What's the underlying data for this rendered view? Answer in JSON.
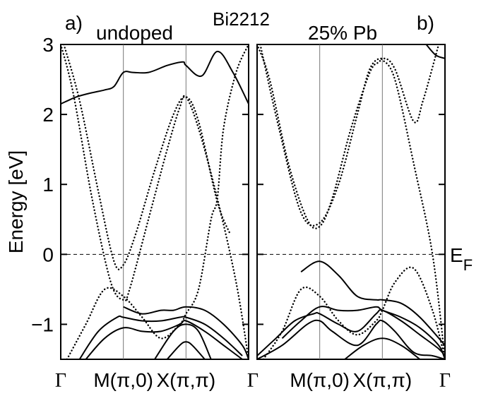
{
  "chart_data": [
    {
      "type": "line",
      "panel_tag": "a)",
      "doping_label": "undoped",
      "ylabel": "Energy [eV]",
      "ylim": [
        -1.5,
        3.0
      ],
      "yticks": [
        -1,
        0,
        1,
        2,
        3
      ],
      "ytick_labels": [
        "−1",
        "0",
        "1",
        "2",
        "3"
      ],
      "k_path": [
        0,
        1,
        2,
        3
      ],
      "k_labels": [
        "Γ",
        "M(π,0)",
        "X(π,π)",
        "Γ"
      ],
      "fermi_level": 0,
      "grid": false,
      "series": [
        {
          "style": "solid",
          "x": [
            0,
            0.12,
            0.25,
            0.45,
            0.7,
            0.85,
            1.0,
            1.15,
            1.4,
            1.7,
            1.95,
            2.0,
            2.25,
            2.5,
            2.75,
            3.0
          ],
          "y": [
            2.15,
            2.2,
            2.25,
            2.3,
            2.35,
            2.4,
            2.6,
            2.6,
            2.6,
            2.7,
            2.75,
            2.7,
            2.55,
            2.9,
            2.6,
            2.15
          ]
        },
        {
          "style": "solid",
          "x": [
            1.0,
            1.3,
            1.6,
            1.8,
            2.0,
            2.3,
            2.6,
            2.9,
            3.0
          ],
          "y": [
            -0.75,
            -0.85,
            -0.8,
            -0.8,
            -0.75,
            -0.8,
            -1.0,
            -1.3,
            -1.5
          ]
        },
        {
          "style": "solid",
          "x": [
            0.3,
            0.6,
            0.9,
            1.0,
            1.3,
            1.6,
            1.9,
            2.0,
            2.3,
            2.6,
            2.9
          ],
          "y": [
            -1.5,
            -1.1,
            -0.9,
            -0.9,
            -0.95,
            -0.95,
            -0.9,
            -0.9,
            -1.0,
            -1.2,
            -1.45
          ]
        },
        {
          "style": "solid",
          "x": [
            0.4,
            0.7,
            1.0,
            1.3,
            1.6,
            1.9,
            2.0,
            2.3,
            2.6,
            2.9
          ],
          "y": [
            -1.5,
            -1.2,
            -1.05,
            -1.1,
            -1.1,
            -1.0,
            -0.95,
            -1.1,
            -1.3,
            -1.5
          ]
        },
        {
          "style": "solid",
          "x": [
            1.5,
            1.8,
            2.0,
            2.2,
            2.4
          ],
          "y": [
            -1.5,
            -1.1,
            -1.0,
            -1.1,
            -1.5
          ]
        },
        {
          "style": "solid",
          "x": [
            1.7,
            1.9,
            2.0,
            2.1,
            2.3
          ],
          "y": [
            -1.5,
            -1.3,
            -1.25,
            -1.3,
            -1.5
          ]
        },
        {
          "style": "dotted",
          "x": [
            0,
            0.2,
            0.5,
            0.8,
            1.0,
            1.1,
            1.4,
            1.7,
            1.9,
            2.0,
            2.2,
            2.5,
            2.8,
            3.0
          ],
          "y": [
            3.0,
            2.3,
            0.8,
            -0.4,
            -0.65,
            -0.5,
            0.5,
            1.5,
            2.1,
            2.25,
            1.8,
            0.8,
            -0.4,
            -1.5
          ]
        },
        {
          "style": "dotted",
          "x": [
            0.05,
            0.3,
            0.6,
            0.85,
            1.0,
            1.2,
            1.5,
            1.8,
            2.0,
            2.2,
            2.5,
            2.7
          ],
          "y": [
            3.0,
            2.2,
            0.9,
            -0.1,
            -0.15,
            0.3,
            1.2,
            2.0,
            2.25,
            1.9,
            0.75,
            0.3
          ]
        },
        {
          "style": "dotted",
          "x": [
            0.1,
            0.4,
            0.7,
            1.0,
            1.3,
            1.6,
            1.9,
            2.0,
            2.2,
            2.4,
            2.5,
            2.6,
            2.8,
            3.0
          ],
          "y": [
            -1.5,
            -1.0,
            -0.5,
            -0.6,
            -0.9,
            -1.2,
            -1.0,
            -0.85,
            -0.5,
            0.5,
            0.8,
            1.8,
            2.6,
            3.0
          ]
        }
      ]
    },
    {
      "type": "line",
      "panel_tag": "b)",
      "doping_label": "25% Pb",
      "ylim": [
        -1.5,
        3.0
      ],
      "yticks": [
        -1,
        0,
        1,
        2,
        3
      ],
      "k_path": [
        0,
        1,
        2,
        3
      ],
      "k_labels": [
        "M(π,0)",
        "X(π,π)",
        "Γ"
      ],
      "fermi_level": 0,
      "fermi_label": "E",
      "fermi_label_sub": "F",
      "grid": false,
      "series": [
        {
          "style": "solid",
          "x": [
            0.7,
            1.0,
            1.3,
            1.6,
            1.9,
            2.0,
            2.3,
            2.6,
            3.0
          ],
          "y": [
            -0.25,
            -0.1,
            -0.3,
            -0.6,
            -0.65,
            -0.65,
            -0.7,
            -0.9,
            -1.3
          ]
        },
        {
          "style": "solid",
          "x": [
            0.4,
            0.7,
            1.0,
            1.3,
            1.6,
            1.9,
            2.0,
            2.3,
            2.6,
            2.9,
            3.0
          ],
          "y": [
            -1.2,
            -0.95,
            -0.75,
            -0.8,
            -0.8,
            -0.75,
            -0.8,
            -0.9,
            -1.05,
            -1.3,
            -1.5
          ]
        },
        {
          "style": "solid",
          "x": [
            0,
            0.3,
            0.6,
            0.9,
            1.0,
            1.3,
            1.6,
            1.9,
            2.0,
            2.3,
            2.6,
            2.9,
            3.0
          ],
          "y": [
            -1.45,
            -1.2,
            -0.95,
            -0.85,
            -0.85,
            -1.0,
            -1.1,
            -0.85,
            -0.8,
            -0.95,
            -1.15,
            -1.35,
            -1.45
          ]
        },
        {
          "style": "solid",
          "x": [
            0,
            0.4,
            0.8,
            1.0,
            1.2,
            1.6,
            1.9,
            2.0,
            2.2,
            2.5,
            2.8,
            3.0
          ],
          "y": [
            -1.5,
            -1.3,
            -1.0,
            -0.95,
            -1.1,
            -1.3,
            -1.0,
            -0.95,
            -1.1,
            -1.4,
            -1.45,
            -1.5
          ]
        },
        {
          "style": "solid",
          "x": [
            1.4,
            1.7,
            2.0,
            2.3,
            2.6
          ],
          "y": [
            -1.5,
            -1.3,
            -1.2,
            -1.3,
            -1.5
          ]
        },
        {
          "style": "solid",
          "x": [
            2.7,
            2.85,
            3.0
          ],
          "y": [
            3.0,
            2.85,
            2.8
          ]
        },
        {
          "style": "dotted",
          "x": [
            0,
            0.2,
            0.5,
            0.8,
            1.0,
            1.2,
            1.5,
            1.8,
            1.95,
            2.0,
            2.2,
            2.5,
            2.8,
            3.0
          ],
          "y": [
            3.0,
            2.5,
            1.3,
            0.5,
            0.4,
            0.8,
            1.8,
            2.6,
            2.75,
            2.78,
            2.5,
            1.3,
            0.0,
            -1.5
          ]
        },
        {
          "style": "dotted",
          "x": [
            0.05,
            0.35,
            0.7,
            1.0,
            1.3,
            1.6,
            1.8,
            2.0,
            2.2,
            2.5,
            2.65,
            2.9
          ],
          "y": [
            3.0,
            1.8,
            0.6,
            0.45,
            1.0,
            2.0,
            2.65,
            2.8,
            2.65,
            1.9,
            2.2,
            3.0
          ]
        },
        {
          "style": "dotted",
          "x": [
            0.1,
            0.4,
            0.7,
            1.0,
            1.3,
            1.6,
            1.9,
            2.0,
            2.2,
            2.5,
            2.8,
            3.0
          ],
          "y": [
            -1.5,
            -1.1,
            -0.5,
            -0.6,
            -0.95,
            -1.15,
            -0.95,
            -0.8,
            -0.4,
            -0.2,
            -0.8,
            -1.5
          ]
        }
      ]
    }
  ],
  "figure_label": "Bi2212"
}
